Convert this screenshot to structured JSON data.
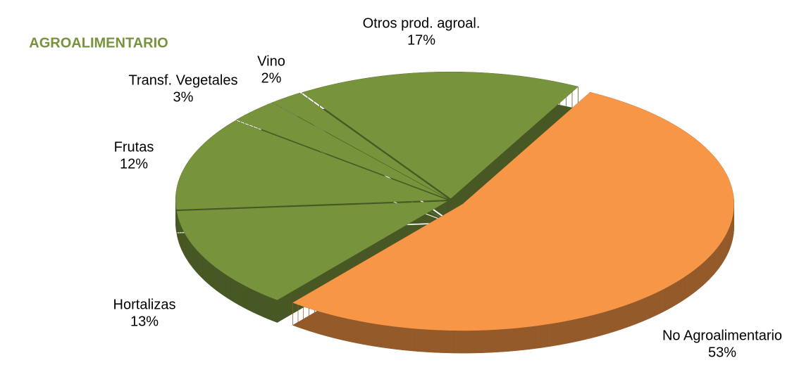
{
  "chart_data": {
    "type": "pie",
    "annotation": "AGROALIMENTARIO",
    "categories": [
      "No Agroalimentario",
      "Hortalizas",
      "Frutas",
      "Transf. Vegetales",
      "Vino",
      "Otros prod. agroal."
    ],
    "values": [
      53,
      13,
      12,
      3,
      2,
      17
    ],
    "value_labels": [
      "53%",
      "13%",
      "12%",
      "3%",
      "2%",
      "17%"
    ],
    "colors": [
      "#f79646",
      "#77933c",
      "#77933c",
      "#77933c",
      "#77933c",
      "#77933c"
    ]
  }
}
